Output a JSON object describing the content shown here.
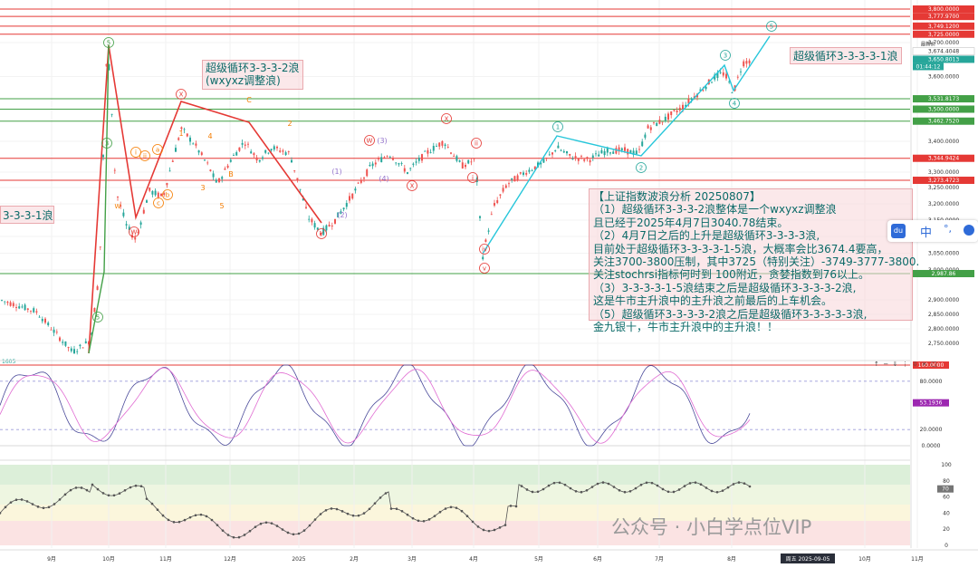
{
  "chart_data": {
    "type": "candlestick",
    "title": "",
    "xlabel": "",
    "ylabel": "",
    "ylim": [
      2700,
      3830
    ],
    "x_ticks": [
      "9月",
      "10月",
      "11月",
      "12月",
      "2025",
      "2月",
      "3月",
      "4月",
      "5月",
      "6月",
      "7月",
      "8月",
      "10月",
      "11月"
    ],
    "x_tick_focus": "周五 2025-09-05",
    "y_ticks": [
      "3,700.0000",
      "3,600.0000",
      "3,500.0000",
      "3,400.0000",
      "3,300.0000",
      "3,250.0000",
      "3,200.0000",
      "3,150.0000",
      "3,100.0000",
      "3,050.0000",
      "3,000.0000",
      "2,900.0000",
      "2,850.0000",
      "2,800.0000",
      "2,750.0000"
    ],
    "price_tags": [
      {
        "label": "3,800.0000",
        "value": 3800,
        "color": "#e53935"
      },
      {
        "label": "3,777.9700",
        "value": 3777.97,
        "color": "#e53935"
      },
      {
        "label": "3,749.1200",
        "value": 3749.12,
        "color": "#e53935"
      },
      {
        "label": "3,725.0000",
        "value": 3725,
        "color": "#e53935"
      },
      {
        "label": "3,674.4048",
        "value": 3674.4048,
        "color": "#ffffff"
      },
      {
        "label": "3,650.8013",
        "value": 3650.8013,
        "color": "#26a69a"
      },
      {
        "label": "3,531.8173",
        "value": 3531.8173,
        "color": "#43a047"
      },
      {
        "label": "3,500.0000",
        "value": 3500,
        "color": "#43a047"
      },
      {
        "label": "3,462.7520",
        "value": 3462.752,
        "color": "#43a047"
      },
      {
        "label": "3,344.9424",
        "value": 3344.9424,
        "color": "#e53935"
      },
      {
        "label": "3,273.4723",
        "value": 3273.4723,
        "color": "#e53935"
      },
      {
        "label": "2,987.86",
        "value": 2987.86,
        "color": "#43a047"
      }
    ],
    "countdown": "01:44:12",
    "price_label_tag": "最新价",
    "horizontal_lines": [
      {
        "value": 3800,
        "color": "#e53935"
      },
      {
        "value": 3777.97,
        "color": "#e53935"
      },
      {
        "value": 3749.12,
        "color": "#e53935"
      },
      {
        "value": 3725,
        "color": "#e53935"
      },
      {
        "value": 3531.82,
        "color": "#43a047"
      },
      {
        "value": 3500,
        "color": "#43a047"
      },
      {
        "value": 3462.75,
        "color": "#43a047"
      },
      {
        "value": 3344.94,
        "color": "#e53935"
      },
      {
        "value": 3273.47,
        "color": "#e53935"
      },
      {
        "value": 2987.86,
        "color": "#43a047"
      }
    ],
    "wave_labels_circled": [
      "⑤",
      "③",
      "①",
      "④",
      "②",
      "⑤"
    ],
    "wave_labels_letters": [
      "W",
      "X",
      "Y",
      "C",
      "A",
      "B",
      "(1)",
      "(2)",
      "(3)",
      "(4)",
      "i",
      "ii",
      "iii",
      "iv",
      "v",
      "a",
      "b",
      "c"
    ],
    "wave_labels_digits": [
      "1",
      "2",
      "3",
      "4",
      "5"
    ],
    "oscillator": {
      "y_ticks": [
        "100.0000",
        "80.0000",
        "53.1936",
        "20.0000",
        "0.0000"
      ],
      "level_tags": [
        {
          "label": "100.0000",
          "color": "#e53935"
        },
        {
          "label": "53.1936",
          "color": "#9c27b0"
        }
      ],
      "top_label": "1605"
    },
    "sentiment": {
      "y_ticks": [
        "100",
        "80",
        "60",
        "40",
        "20",
        "0"
      ],
      "current": "70"
    }
  },
  "annotations": {
    "title_lines": [
      "超级循环3-3-3-2浪",
      "(wxyxz调整浪)"
    ],
    "right_label": "超级循环3-3-3-3-1浪",
    "left_label": "3-3-3-1浪",
    "note_lines": [
      "【上证指数波浪分析 20250807】",
      "  （1）超级循环3-3-3-2浪整体是一个wxyxz调整浪",
      "且已经于2025年4月7日3040.78结束。",
      "  （2）4月7日之后的上升是超级循环3-3-3-3浪,",
      "目前处于超级循环3-3-3-3-1-5浪，大概率会比3674.4要高，",
      "关注3700-3800压制，其中3725（特别关注）-3749-3777-3800.",
      "关注stochrsi指标何时到 100附近，贪婪指数到76以上。",
      "  （3）3-3-3-3-1-5浪结束之后是超级循环3-3-3-3-2浪,",
      "这是牛市主升浪中的主升浪之前最后的上车机会。",
      "  （5）超级循环3-3-3-3-2浪之后是超级循环3-3-3-3-3浪,",
      "金九银十，牛市主升浪中的主升浪！！"
    ]
  },
  "toolbar": {
    "icons": [
      "↑",
      "−",
      "⇓",
      "⋮",
      "⇩",
      "×",
      "□"
    ]
  },
  "widget": {
    "logo": "du",
    "lang": "中",
    "symbol": "°,"
  },
  "watermark": {
    "text": "公众号 · 小白学点位VIP"
  }
}
